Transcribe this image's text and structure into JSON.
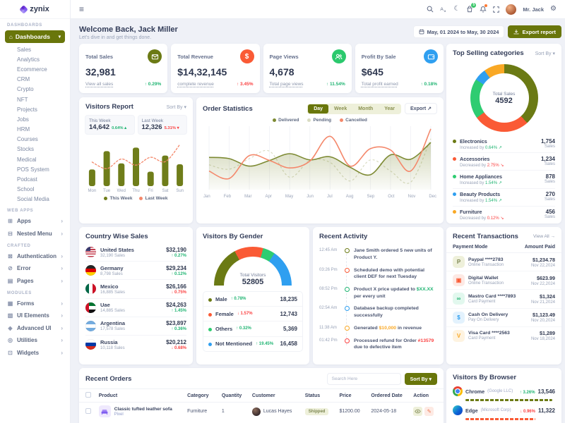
{
  "brand": {
    "name": "zynix"
  },
  "topbar": {
    "user": "Mr. Jack",
    "cart_badge": "5"
  },
  "sidebar": {
    "section_dashboards": "DASHBOARDS",
    "dashboards_label": "Dashboards",
    "dashboard_items": [
      "Sales",
      "Analytics",
      "Ecommerce",
      "CRM",
      "Crypto",
      "NFT",
      "Projects",
      "Jobs",
      "HRM",
      "Courses",
      "Stocks",
      "Medical",
      "POS System",
      "Podcast",
      "School",
      "Social Media"
    ],
    "section_webapps": "WEB APPS",
    "webapp_items": [
      {
        "label": "Apps",
        "glyph": "⊞"
      },
      {
        "label": "Nested Menu",
        "glyph": "⊟"
      }
    ],
    "section_crafted": "CRAFTED",
    "crafted_items": [
      {
        "label": "Authentication",
        "glyph": "⊠"
      },
      {
        "label": "Error",
        "glyph": "⊘"
      },
      {
        "label": "Pages",
        "glyph": "▤"
      }
    ],
    "section_modules": "MODULES",
    "module_items": [
      {
        "label": "Forms",
        "glyph": "▦"
      },
      {
        "label": "UI Elements",
        "glyph": "▧"
      },
      {
        "label": "Advanced UI",
        "glyph": "◈"
      },
      {
        "label": "Utilities",
        "glyph": "◎"
      },
      {
        "label": "Widgets",
        "glyph": "⊡"
      }
    ]
  },
  "header": {
    "welcome": "Welcome Back, Jack Miller",
    "subtitle": "Let's dive in and get things done.",
    "date_range": "May, 01 2024 to May, 30 2024",
    "export_label": "Export report"
  },
  "stats": {
    "cards": [
      {
        "title": "Total Sales",
        "value": "32,981",
        "link": "View all sales",
        "delta": "↑ 0.29%",
        "icon": "mail-icon"
      },
      {
        "title": "Total Revenue",
        "value": "$14,32,145",
        "link": "complete revenue",
        "delta": "↑ 3.45%",
        "icon": "dollar-icon"
      },
      {
        "title": "Page Views",
        "value": "4,678",
        "link": "Total page views",
        "delta": "↑ 11.54%",
        "icon": "users-icon"
      },
      {
        "title": "Profit By Sale",
        "value": "$645",
        "link": "Total profit earned",
        "delta": "↑ 0.18%",
        "icon": "wallet-icon"
      }
    ]
  },
  "visitors_report": {
    "title": "Visitors Report",
    "sort_label": "Sort By",
    "this_week": {
      "label": "This Week",
      "value": "14,642",
      "delta": "0.64% ▴"
    },
    "last_week": {
      "label": "Last Week",
      "value": "12,326",
      "delta": "5.31% ▾"
    }
  },
  "order_stats": {
    "title": "Order Statistics",
    "tabs": [
      {
        "label": "Day",
        "cls": "active"
      },
      {
        "label": "Week"
      },
      {
        "label": "Month"
      },
      {
        "label": "Year"
      }
    ],
    "export_label": "Export",
    "legend": [
      {
        "label": "Delivered",
        "color": "#7d8a33"
      },
      {
        "label": "Pending",
        "color": "#d9dcc2"
      },
      {
        "label": "Cancelled",
        "color": "#f4886b"
      }
    ]
  },
  "country_sales": {
    "title": "Country Wise Sales",
    "items": [
      {
        "country": "United States",
        "sub": "32,190 Sales",
        "amount": "$32,190",
        "delta": "↑ 0.27%",
        "delta_class": "d-green",
        "flag": "flag-us"
      },
      {
        "country": "Germany",
        "sub": "8,798 Sales",
        "amount": "$29,234",
        "delta": "↑ 0.12%",
        "delta_class": "d-green",
        "flag": "flag-de"
      },
      {
        "country": "Mexico",
        "sub": "16,885 Sales",
        "amount": "$26,166",
        "delta": "↓ 0.75%",
        "delta_class": "d-red",
        "flag": "flag-mx"
      },
      {
        "country": "Uae",
        "sub": "14,885 Sales",
        "amount": "$24,263",
        "delta": "↑ 1.45%",
        "delta_class": "d-green",
        "flag": "flag-ae"
      },
      {
        "country": "Argentina",
        "sub": "17,578 Sales",
        "amount": "$23,897",
        "delta": "↑ 0.36%",
        "delta_class": "d-green",
        "flag": "flag-ar"
      },
      {
        "country": "Russia",
        "sub": "10,118 Sales",
        "amount": "$20,212",
        "delta": "↓ 0.68%",
        "delta_class": "d-red",
        "flag": "flag-ru"
      }
    ]
  },
  "visitors_gender": {
    "title": "Visitors By Gender",
    "items": [
      {
        "label": "Male",
        "delta": "↑ 0.78%",
        "delta_class": "d-green",
        "value": "18,235",
        "color": "#6b7a14"
      },
      {
        "label": "Female",
        "delta": "↓ 1.57%",
        "delta_class": "d-red",
        "value": "12,743",
        "color": "#fa5a35"
      },
      {
        "label": "Others",
        "delta": "↑ 0.32%",
        "delta_class": "d-green",
        "value": "5,369",
        "color": "#2ecc71"
      },
      {
        "label": "Not Mentioned",
        "delta": "↑ 19.45%",
        "delta_class": "d-green",
        "value": "16,458",
        "color": "#2f9ff0"
      }
    ]
  },
  "recent_activity": {
    "title": "Recent Activity",
    "items": [
      {
        "time": "12:45 Am",
        "color": "#6b7a14",
        "pre": "Jane Smith ordered 5 new units of Product Y.",
        "hl": "",
        "post": ""
      },
      {
        "time": "03:26 Pm",
        "color": "#fa5a35",
        "pre": "Scheduled demo with potential client DEF for next Tuesday",
        "hl": "",
        "post": ""
      },
      {
        "time": "08:52 Pm",
        "color": "#21b573",
        "pre": "Product X price updated to ",
        "hl": "$XX.XX",
        "hl_class": "hl-green",
        "post": " per every unit"
      },
      {
        "time": "02:54 Am",
        "color": "#2f9ff0",
        "pre": "Database backup completed successfully",
        "hl": "",
        "post": ""
      },
      {
        "time": "11:38 Am",
        "color": "#f9a825",
        "pre": "Generated ",
        "hl": "$10,000",
        "hl_class": "hl-amber",
        "post": " in revenue"
      },
      {
        "time": "01:42 Pm",
        "color": "#fb4242",
        "pre": "Processed refund for Order ",
        "hl": "#13579",
        "hl_class": "hl-red",
        "post": " due to defective item"
      }
    ]
  },
  "transactions": {
    "title": "Recent Transactions",
    "view_all": "View All →",
    "col_mode": "Payment Mode",
    "col_amount": "Amount Paid",
    "items": [
      {
        "mode": "Paypal ****2783",
        "sub": "Online Transaction",
        "amount": "$1,234.78",
        "date": "Nov 22,2024",
        "glyph": "P",
        "color": "#7c8650",
        "bg": "#eef0da",
        "icon": "paypal-icon"
      },
      {
        "mode": "Digital Wallet",
        "sub": "Online Transaction",
        "amount": "$623.99",
        "date": "Nov 22,2024",
        "glyph": "▣",
        "color": "#fa5a35",
        "bg": "#fde9e4",
        "icon": "digital-wallet-icon"
      },
      {
        "mode": "Mastro Card ****7893",
        "sub": "Card Payment",
        "amount": "$1,324",
        "date": "Nov 21,2024",
        "glyph": "∞",
        "color": "#21b573",
        "bg": "#e2f8ee",
        "icon": "mastercard-icon"
      },
      {
        "mode": "Cash On Delivery",
        "sub": "Pay On Delivery",
        "amount": "$1,123.49",
        "date": "Nov 20,2024",
        "glyph": "$",
        "color": "#2f9ff0",
        "bg": "#e3f2fd",
        "icon": "cash-icon"
      },
      {
        "mode": "Visa Card ****2563",
        "sub": "Card Payment",
        "amount": "$1,289",
        "date": "Nov 18,2024",
        "glyph": "V",
        "color": "#f9a825",
        "bg": "#fef3e0",
        "icon": "visa-icon"
      }
    ]
  },
  "orders": {
    "title": "Recent Orders",
    "search_placeholder": "Search Here",
    "sort_label": "Sort By",
    "headers": [
      "Product",
      "Category",
      "Quantity",
      "Customer",
      "Status",
      "Price",
      "Ordered Date",
      "Action"
    ],
    "rows": [
      {
        "product": "Classic tufted leather sofa",
        "brand": "Pixel",
        "category": "Furniture",
        "qty": "1",
        "customer": "Lucas Hayes",
        "status": "Shipped",
        "price": "$1200.00",
        "date": "2024-05-18"
      }
    ]
  },
  "browsers": {
    "title": "Visitors By Browser",
    "items": [
      {
        "name": "Chrome",
        "company": "(Google LLC)",
        "delta": "↑ 3.26%",
        "delta_class": "d-green",
        "value": "13,546",
        "bar": "85%",
        "color": "#6b7a14",
        "icon": "chrome-icon"
      },
      {
        "name": "Edge",
        "company": "(Microsoft Corp)",
        "delta": "↓ 0.96%",
        "delta_class": "d-red",
        "value": "11,322",
        "bar": "68%",
        "color": "#fa5a35",
        "icon": "edge-icon"
      }
    ]
  },
  "chart_data": {
    "visitors_report": {
      "type": "bar+line",
      "ylim": [
        0,
        100
      ],
      "categories": [
        "Mon",
        "Tue",
        "Wed",
        "Thu",
        "Fri",
        "Sat",
        "Sun"
      ],
      "series": [
        {
          "name": "This Week",
          "type": "bar",
          "color": "#6f7d1a",
          "values": [
            38,
            80,
            52,
            88,
            33,
            70,
            50
          ]
        },
        {
          "name": "Last Week",
          "type": "line",
          "dashed": true,
          "color": "#f4886b",
          "values": [
            55,
            40,
            62,
            48,
            66,
            56,
            95
          ]
        }
      ]
    },
    "order_statistics": {
      "type": "line",
      "ylim": [
        0,
        100
      ],
      "x": [
        "Jan",
        "Feb",
        "Mar",
        "Apr",
        "May",
        "Jun",
        "Jul",
        "Aug",
        "Sep",
        "Oct",
        "Nov",
        "Dec"
      ],
      "series": [
        {
          "name": "Delivered",
          "color": "#7d8a33",
          "area": true,
          "values": [
            52,
            50,
            38,
            47,
            58,
            48,
            53,
            36,
            24,
            56,
            49,
            76
          ]
        },
        {
          "name": "Pending",
          "color": "#d9dcc2",
          "dashed": true,
          "values": [
            40,
            33,
            50,
            62,
            20,
            47,
            44,
            14,
            48,
            30,
            12,
            82
          ]
        },
        {
          "name": "Cancelled",
          "color": "#f4886b",
          "values": [
            30,
            18,
            55,
            47,
            35,
            46,
            86,
            38,
            66,
            64,
            30,
            98
          ]
        }
      ]
    },
    "top_selling": {
      "type": "donut",
      "title": "Top Selling categories",
      "sort_label": "Sort By",
      "center_label": "Total Sales",
      "center_value": "4592",
      "segments": [
        {
          "label": "Electronics",
          "value": 1754,
          "color": "#6b7a14",
          "change_label": "Increased by",
          "change": "0.64% ↗",
          "change_class": "d-green",
          "sales": "1,754",
          "unit": "Sales"
        },
        {
          "label": "Accessories",
          "value": 1234,
          "color": "#fa5a35",
          "change_label": "Decreased by",
          "change": "2.75% ↘",
          "change_class": "d-red",
          "sales": "1,234",
          "unit": "Sales"
        },
        {
          "label": "Home Appliances",
          "value": 878,
          "color": "#2ecc71",
          "change_label": "Increased by",
          "change": "1.54% ↗",
          "change_class": "d-green",
          "sales": "878",
          "unit": "Sales"
        },
        {
          "label": "Beauty Products",
          "value": 270,
          "color": "#2f9ff0",
          "change_label": "Increased by",
          "change": "1.54% ↗",
          "change_class": "d-green",
          "sales": "270",
          "unit": "Sales"
        },
        {
          "label": "Furniture",
          "value": 456,
          "color": "#f9a825",
          "change_label": "Decreased by",
          "change": "0.12% ↘",
          "change_class": "d-red",
          "sales": "456",
          "unit": "Sales"
        }
      ]
    },
    "visitors_gender": {
      "type": "gauge",
      "center_label": "Total Visitors",
      "center_value": "52805",
      "segments": [
        {
          "label": "Male",
          "value": 18235,
          "color": "#6b7a14"
        },
        {
          "label": "Female",
          "value": 12743,
          "color": "#fa5a35"
        },
        {
          "label": "Others",
          "value": 5369,
          "color": "#2ecc71"
        },
        {
          "label": "Not Mentioned",
          "value": 16458,
          "color": "#2f9ff0"
        }
      ]
    }
  }
}
